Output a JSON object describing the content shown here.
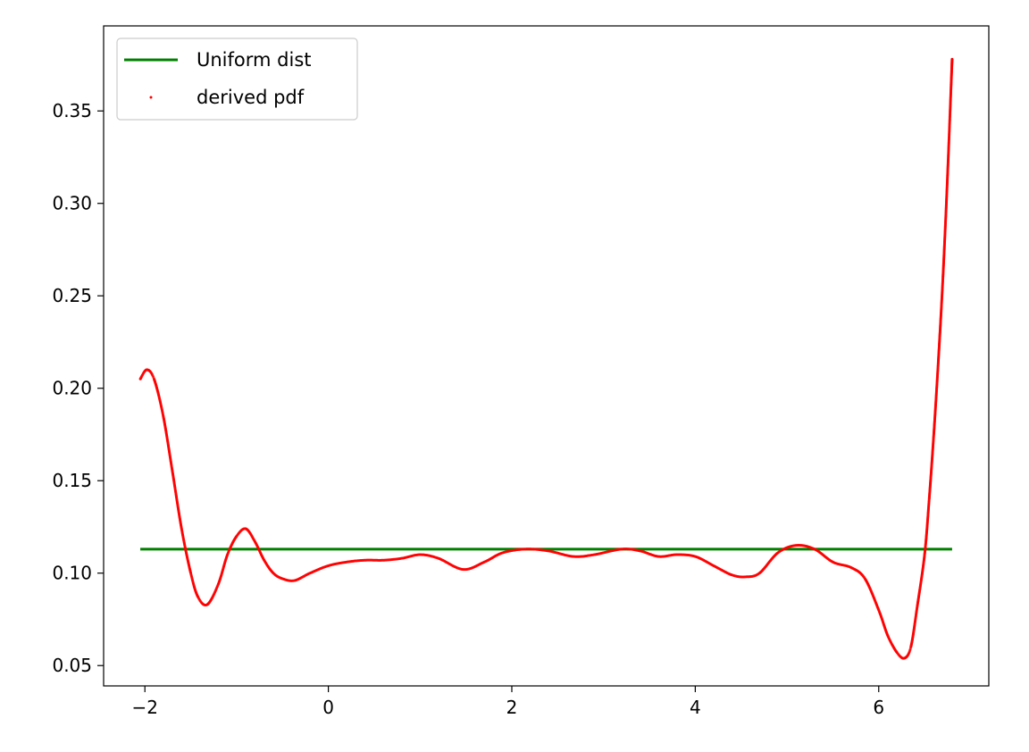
{
  "chart_data": {
    "type": "line",
    "title": "",
    "xlabel": "",
    "ylabel": "",
    "xlim": [
      -2.45,
      7.2
    ],
    "ylim": [
      0.039,
      0.396
    ],
    "grid": false,
    "legend_position": "upper-left",
    "x_ticks": [
      -2,
      0,
      2,
      4,
      6
    ],
    "x_tick_labels": [
      "−2",
      "0",
      "2",
      "4",
      "6"
    ],
    "y_ticks": [
      0.05,
      0.1,
      0.15,
      0.2,
      0.25,
      0.3,
      0.35
    ],
    "y_tick_labels": [
      "0.05",
      "0.10",
      "0.15",
      "0.20",
      "0.25",
      "0.30",
      "0.35"
    ],
    "series": [
      {
        "name": "Uniform dist",
        "kind": "line",
        "color": "#008000",
        "x": [
          -2.05,
          6.8
        ],
        "y": [
          0.113,
          0.113
        ]
      },
      {
        "name": "derived pdf",
        "kind": "scatter",
        "color": "#ff0000",
        "x": [
          -2.05,
          -1.98,
          -1.9,
          -1.8,
          -1.7,
          -1.6,
          -1.5,
          -1.42,
          -1.32,
          -1.2,
          -1.1,
          -1.0,
          -0.9,
          -0.8,
          -0.7,
          -0.6,
          -0.5,
          -0.37,
          -0.2,
          0.0,
          0.2,
          0.4,
          0.6,
          0.8,
          1.0,
          1.2,
          1.47,
          1.7,
          1.9,
          2.15,
          2.4,
          2.67,
          2.9,
          3.2,
          3.4,
          3.6,
          3.8,
          4.0,
          4.2,
          4.4,
          4.55,
          4.7,
          4.9,
          5.1,
          5.3,
          5.5,
          5.7,
          5.85,
          6.0,
          6.1,
          6.2,
          6.28,
          6.35,
          6.42,
          6.5,
          6.55,
          6.6,
          6.65,
          6.7,
          6.75,
          6.8
        ],
        "y": [
          0.205,
          0.21,
          0.205,
          0.185,
          0.155,
          0.124,
          0.1,
          0.087,
          0.083,
          0.094,
          0.11,
          0.12,
          0.124,
          0.117,
          0.107,
          0.1,
          0.097,
          0.096,
          0.1,
          0.104,
          0.106,
          0.107,
          0.107,
          0.108,
          0.11,
          0.108,
          0.102,
          0.106,
          0.111,
          0.113,
          0.112,
          0.109,
          0.11,
          0.113,
          0.112,
          0.109,
          0.11,
          0.109,
          0.104,
          0.099,
          0.098,
          0.1,
          0.111,
          0.115,
          0.113,
          0.106,
          0.103,
          0.097,
          0.08,
          0.066,
          0.057,
          0.054,
          0.06,
          0.082,
          0.11,
          0.14,
          0.175,
          0.215,
          0.26,
          0.315,
          0.378
        ]
      }
    ]
  }
}
